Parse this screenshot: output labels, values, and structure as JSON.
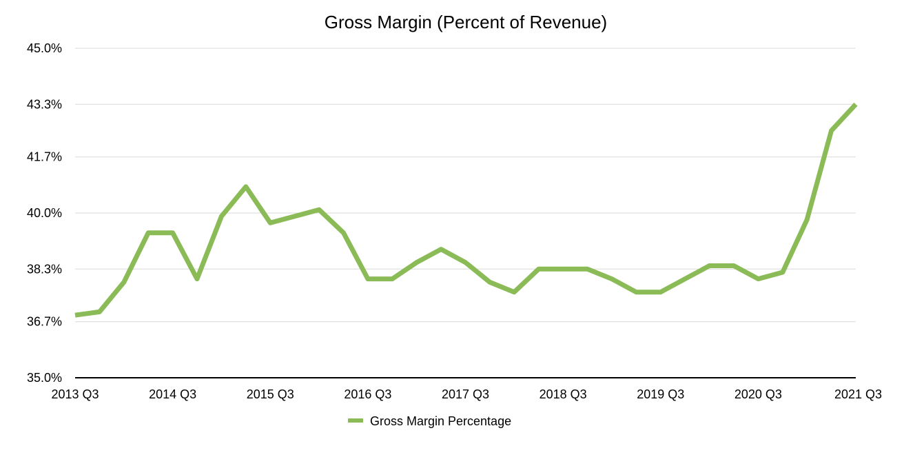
{
  "chart_data": {
    "type": "line",
    "title": "Gross Margin (Percent of Revenue)",
    "xlabel": "",
    "ylabel": "",
    "ylim": [
      35.0,
      45.0
    ],
    "y_ticks": [
      "35.0%",
      "36.7%",
      "38.3%",
      "40.0%",
      "41.7%",
      "43.3%",
      "45.0%"
    ],
    "y_tick_values": [
      35.0,
      36.7,
      38.3,
      40.0,
      41.7,
      43.3,
      45.0
    ],
    "x_tick_labels": [
      "2013 Q3",
      "2014 Q3",
      "2015 Q3",
      "2016 Q3",
      "2017 Q3",
      "2018 Q3",
      "2019 Q3",
      "2020 Q3",
      "2021 Q3"
    ],
    "categories": [
      "2013 Q3",
      "2013 Q4",
      "2014 Q1",
      "2014 Q2",
      "2014 Q3",
      "2014 Q4",
      "2015 Q1",
      "2015 Q2",
      "2015 Q3",
      "2015 Q4",
      "2016 Q1",
      "2016 Q2",
      "2016 Q3",
      "2016 Q4",
      "2017 Q1",
      "2017 Q2",
      "2017 Q3",
      "2017 Q4",
      "2018 Q1",
      "2018 Q2",
      "2018 Q3",
      "2018 Q4",
      "2019 Q1",
      "2019 Q2",
      "2019 Q3",
      "2019 Q4",
      "2020 Q1",
      "2020 Q2",
      "2020 Q3",
      "2020 Q4",
      "2021 Q1",
      "2021 Q2",
      "2021 Q3"
    ],
    "grid": true,
    "legend_position": "bottom",
    "series": [
      {
        "name": "Gross Margin Percentage",
        "color": "#8bbb57",
        "values": [
          36.9,
          37.0,
          37.9,
          39.4,
          39.4,
          38.0,
          39.9,
          40.8,
          39.7,
          39.9,
          40.1,
          39.4,
          38.0,
          38.0,
          38.5,
          38.9,
          38.5,
          37.9,
          37.6,
          38.3,
          38.3,
          38.3,
          38.0,
          37.6,
          37.6,
          38.0,
          38.4,
          38.4,
          38.0,
          38.2,
          39.8,
          42.5,
          43.3
        ]
      }
    ]
  }
}
